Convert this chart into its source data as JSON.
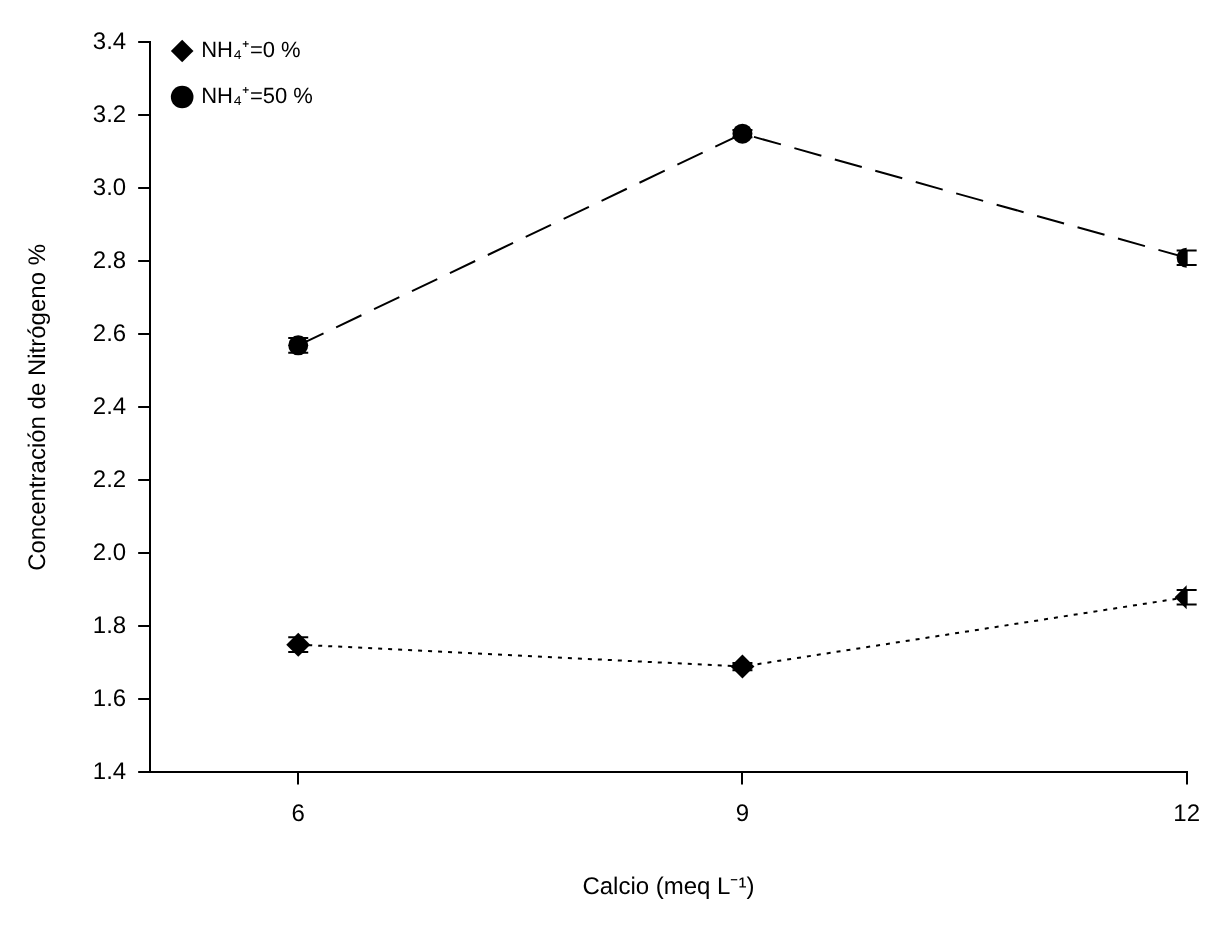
{
  "chart_data": {
    "type": "line",
    "xlabel": "Calcio (meq L⁻¹)",
    "ylabel": "Concentración de Nitrógeno %",
    "x": [
      6,
      9,
      12
    ],
    "series": [
      {
        "name": "NH₄⁺=0 %",
        "color": "#000000",
        "values": [
          1.75,
          1.69,
          1.88
        ],
        "errors": [
          0.02,
          0.01,
          0.02
        ],
        "marker": "diamond",
        "line_style": "dotted"
      },
      {
        "name": "NH₄⁺=50 %",
        "color": "#000000",
        "values": [
          2.57,
          3.15,
          2.81
        ],
        "errors": [
          0.02,
          0.01,
          0.02
        ],
        "marker": "circle",
        "line_style": "dashed"
      }
    ],
    "xlim": [
      5,
      12
    ],
    "xticks": [
      6,
      9,
      12
    ],
    "ylim": [
      1.4,
      3.4
    ],
    "yticks": [
      1.4,
      1.6,
      1.8,
      {
        "value": 2,
        "label": "2.0"
      },
      2.2,
      2.4,
      2.6,
      2.8,
      {
        "value": 3,
        "label": "3.0"
      },
      3.2,
      3.4
    ],
    "grid": false,
    "legend": "left"
  }
}
